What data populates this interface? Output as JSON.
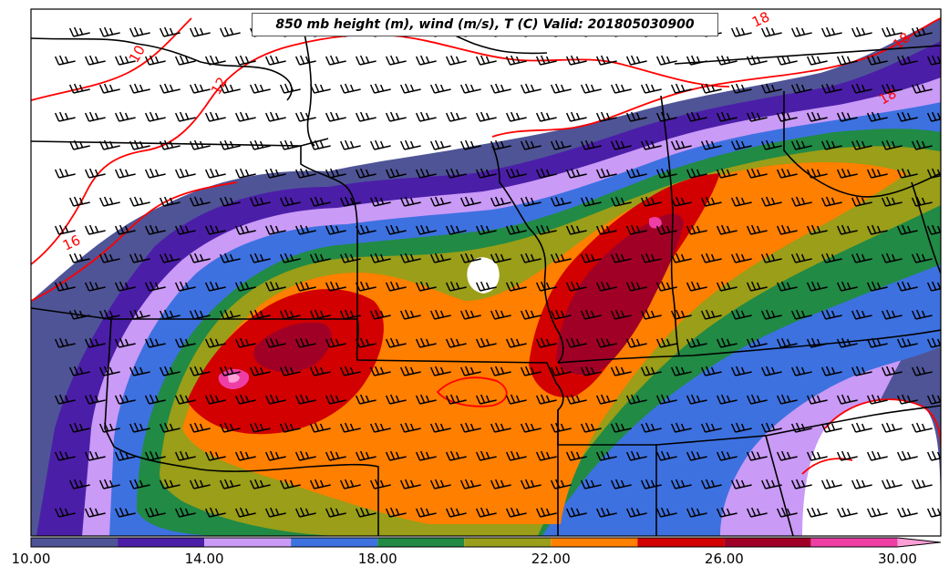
{
  "title": "850 mb height (m), wind (m/s), T (C) Valid: 201805030900",
  "colorbar": {
    "tick_labels": [
      "10.00",
      "14.00",
      "18.00",
      "22.00",
      "26.00",
      "30.00"
    ],
    "min": 10,
    "max": 31,
    "extend": "max",
    "bins": [
      {
        "from": 10,
        "to": 12,
        "color": "#4f5496"
      },
      {
        "from": 12,
        "to": 14,
        "color": "#4b1ea8"
      },
      {
        "from": 14,
        "to": 16,
        "color": "#c99af6"
      },
      {
        "from": 16,
        "to": 18,
        "color": "#3d71e0"
      },
      {
        "from": 18,
        "to": 20,
        "color": "#218a45"
      },
      {
        "from": 20,
        "to": 22,
        "color": "#9a9e18"
      },
      {
        "from": 22,
        "to": 24,
        "color": "#ff7f00"
      },
      {
        "from": 24,
        "to": 26,
        "color": "#d20000"
      },
      {
        "from": 26,
        "to": 28,
        "color": "#a10026"
      },
      {
        "from": 28,
        "to": 30,
        "color": "#ee3ea6"
      },
      {
        "from": 30,
        "to": 31,
        "color": "#ff9fd5"
      }
    ]
  },
  "contour_labels": [
    "10",
    "12",
    "16",
    "18",
    "18",
    "18"
  ],
  "colors": {
    "temperature_contour": "#ff0000",
    "boundaries": "#000000",
    "wind_barbs": "#000000",
    "background": "#ffffff"
  }
}
